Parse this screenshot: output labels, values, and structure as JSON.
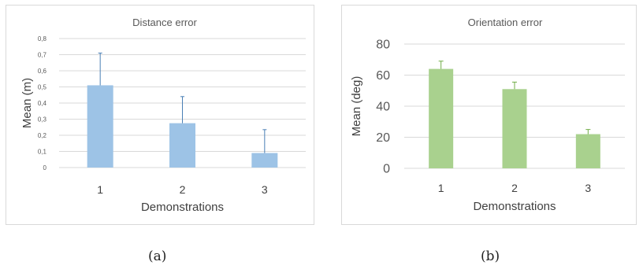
{
  "chart_data": [
    {
      "type": "bar",
      "title": "Distance error",
      "xlabel": "Demonstrations",
      "ylabel": "Mean (m)",
      "categories": [
        "1",
        "2",
        "3"
      ],
      "values": [
        0.51,
        0.275,
        0.09
      ],
      "error": [
        0.2,
        0.165,
        0.145
      ],
      "ylim": [
        0,
        0.8
      ],
      "yticks": [
        "0",
        "0,1",
        "0,2",
        "0,3",
        "0,4",
        "0,5",
        "0,6",
        "0,7",
        "0,8"
      ],
      "yticks_values": [
        0,
        0.1,
        0.2,
        0.3,
        0.4,
        0.5,
        0.6,
        0.7,
        0.8
      ],
      "grid": true,
      "color": "#9dc3e6",
      "error_color": "#4a7fb5"
    },
    {
      "type": "bar",
      "title": "Orientation error",
      "xlabel": "Demonstrations",
      "ylabel": "Mean (deg)",
      "categories": [
        "1",
        "2",
        "3"
      ],
      "values": [
        64,
        51,
        22
      ],
      "error": [
        5,
        4.5,
        3
      ],
      "ylim": [
        0,
        80
      ],
      "yticks": [
        "0",
        "20",
        "40",
        "60",
        "80"
      ],
      "yticks_values": [
        0,
        20,
        40,
        60,
        80
      ],
      "grid": true,
      "color": "#a9d18e",
      "error_color": "#70ad47"
    }
  ],
  "captions": [
    "(a)",
    "(b)"
  ]
}
